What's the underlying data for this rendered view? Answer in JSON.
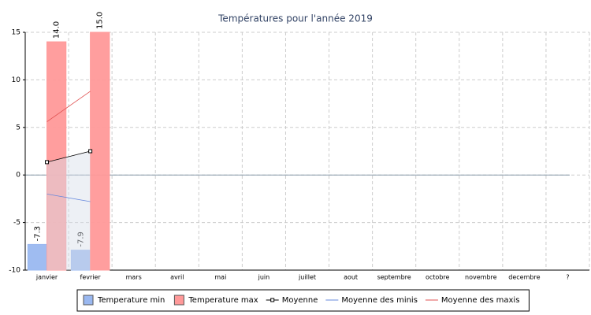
{
  "chart_data": {
    "type": "bar",
    "title": "Températures pour l'année 2019",
    "categories": [
      "janvier",
      "fevrier",
      "mars",
      "avril",
      "mai",
      "juin",
      "juillet",
      "aout",
      "septembre",
      "octobre",
      "novembre",
      "decembre",
      "?"
    ],
    "series": [
      {
        "name": "Temperature min",
        "type": "bar",
        "color": "#9ab8f0",
        "values": [
          -7.3,
          -7.9,
          null,
          null,
          null,
          null,
          null,
          null,
          null,
          null,
          null,
          null,
          null
        ],
        "value_labels": [
          "-7.3",
          "-7.9",
          null,
          null,
          null,
          null,
          null,
          null,
          null,
          null,
          null,
          null,
          null
        ]
      },
      {
        "name": "Temperature max",
        "type": "bar",
        "color": "#ff9999",
        "values": [
          14,
          15,
          null,
          null,
          null,
          null,
          null,
          null,
          null,
          null,
          null,
          null,
          null
        ],
        "value_labels": [
          "14.0",
          "15.0",
          null,
          null,
          null,
          null,
          null,
          null,
          null,
          null,
          null,
          null,
          null
        ]
      },
      {
        "name": "Moyenne",
        "type": "line",
        "color": "#000000",
        "markers": true,
        "area": true,
        "values": [
          1.35,
          2.5,
          null,
          null,
          null,
          null,
          null,
          null,
          null,
          null,
          null,
          null,
          null
        ]
      },
      {
        "name": "Moyenne des minis",
        "type": "line",
        "color": "#6688dd",
        "values": [
          -2.0,
          -2.8,
          null,
          null,
          null,
          null,
          null,
          null,
          null,
          null,
          null,
          null,
          null
        ]
      },
      {
        "name": "Moyenne des maxis",
        "type": "line",
        "color": "#e05050",
        "values": [
          5.6,
          8.8,
          null,
          null,
          null,
          null,
          null,
          null,
          null,
          null,
          null,
          null,
          null
        ]
      }
    ],
    "ylim": [
      -10,
      15
    ],
    "yticks": [
      -10,
      -5,
      0,
      5,
      10,
      15
    ],
    "grid": true,
    "legend": "bottom"
  }
}
